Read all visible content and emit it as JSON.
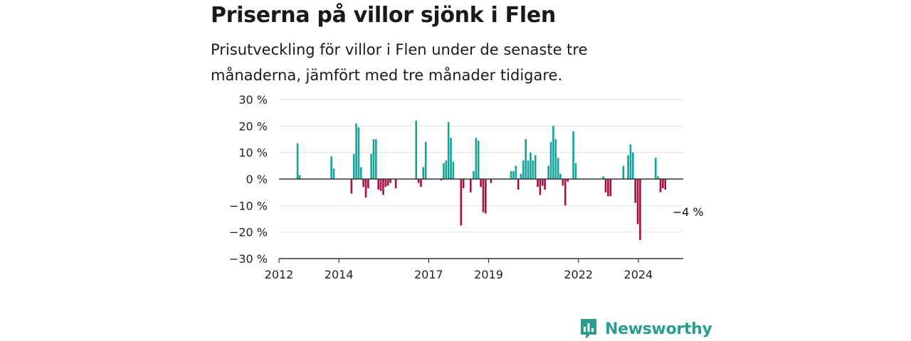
{
  "title": "Priserna på villor sjönk i Flen",
  "subtitle": "Prisutveckling för villor i Flen under de senaste tre månaderna, jämfört med tre månader tidigare.",
  "brand": {
    "name": "Newsworthy",
    "color": "#2a9d8f"
  },
  "colors": {
    "positive": "#14a399",
    "negative": "#a50f44",
    "grid": "#dddddd",
    "axis": "#333333"
  },
  "chart_data": {
    "type": "bar",
    "y_unit": "%",
    "ylim": [
      -30,
      30
    ],
    "yticks": [
      30,
      20,
      10,
      0,
      -10,
      -20,
      -30
    ],
    "ytick_labels": [
      "30 %",
      "20 %",
      "10 %",
      "0 %",
      "−10 %",
      "−20 %",
      "−30 %"
    ],
    "xlim": [
      2012,
      2025.5
    ],
    "xticks": [
      2012,
      2014,
      2017,
      2019,
      2022,
      2024
    ],
    "grid": true,
    "annotation": {
      "text": "−4 %",
      "x": 2024.9,
      "y": -4
    },
    "points": [
      [
        2012.62,
        13.5
      ],
      [
        2012.69,
        1.5
      ],
      [
        2013.75,
        8.5
      ],
      [
        2013.83,
        4
      ],
      [
        2014.42,
        -5.5
      ],
      [
        2014.5,
        9.5
      ],
      [
        2014.58,
        21
      ],
      [
        2014.66,
        19.5
      ],
      [
        2014.74,
        4.5
      ],
      [
        2014.82,
        -3
      ],
      [
        2014.9,
        -7
      ],
      [
        2014.98,
        -3.5
      ],
      [
        2015.08,
        9.5
      ],
      [
        2015.16,
        15
      ],
      [
        2015.24,
        15
      ],
      [
        2015.32,
        -4
      ],
      [
        2015.4,
        -4.5
      ],
      [
        2015.48,
        -6
      ],
      [
        2015.56,
        -3
      ],
      [
        2015.64,
        -2.5
      ],
      [
        2015.72,
        -1.5
      ],
      [
        2015.9,
        -3.5
      ],
      [
        2016.58,
        22
      ],
      [
        2016.66,
        -1.5
      ],
      [
        2016.74,
        -3
      ],
      [
        2016.82,
        4.5
      ],
      [
        2016.9,
        14
      ],
      [
        2017.42,
        -0.5
      ],
      [
        2017.5,
        6
      ],
      [
        2017.58,
        7
      ],
      [
        2017.66,
        21.5
      ],
      [
        2017.74,
        15.5
      ],
      [
        2017.82,
        6.5
      ],
      [
        2018.08,
        -17.5
      ],
      [
        2018.16,
        -3.5
      ],
      [
        2018.4,
        -5
      ],
      [
        2018.5,
        3
      ],
      [
        2018.58,
        15.5
      ],
      [
        2018.66,
        14.5
      ],
      [
        2018.74,
        -3
      ],
      [
        2018.82,
        -12.5
      ],
      [
        2018.9,
        -13
      ],
      [
        2019.08,
        -1.5
      ],
      [
        2019.75,
        3
      ],
      [
        2019.83,
        3
      ],
      [
        2019.91,
        5
      ],
      [
        2019.99,
        -4
      ],
      [
        2020.08,
        2
      ],
      [
        2020.16,
        7
      ],
      [
        2020.24,
        15
      ],
      [
        2020.32,
        7
      ],
      [
        2020.4,
        10
      ],
      [
        2020.48,
        7
      ],
      [
        2020.56,
        9
      ],
      [
        2020.64,
        -3
      ],
      [
        2020.72,
        -6
      ],
      [
        2020.8,
        -2.5
      ],
      [
        2020.88,
        -4
      ],
      [
        2021.0,
        5
      ],
      [
        2021.08,
        14
      ],
      [
        2021.16,
        20
      ],
      [
        2021.24,
        15
      ],
      [
        2021.32,
        8
      ],
      [
        2021.4,
        2
      ],
      [
        2021.48,
        -2.5
      ],
      [
        2021.56,
        -10
      ],
      [
        2021.64,
        -1
      ],
      [
        2021.83,
        18
      ],
      [
        2021.91,
        6
      ],
      [
        2022.83,
        1
      ],
      [
        2022.91,
        -5
      ],
      [
        2022.99,
        -6.5
      ],
      [
        2023.07,
        -6.5
      ],
      [
        2023.5,
        5
      ],
      [
        2023.66,
        9
      ],
      [
        2023.74,
        13
      ],
      [
        2023.82,
        10
      ],
      [
        2023.9,
        -9
      ],
      [
        2023.98,
        -17
      ],
      [
        2024.06,
        -23
      ],
      [
        2024.58,
        8
      ],
      [
        2024.66,
        1
      ],
      [
        2024.74,
        -5
      ],
      [
        2024.82,
        -3.5
      ],
      [
        2024.9,
        -4
      ]
    ]
  }
}
